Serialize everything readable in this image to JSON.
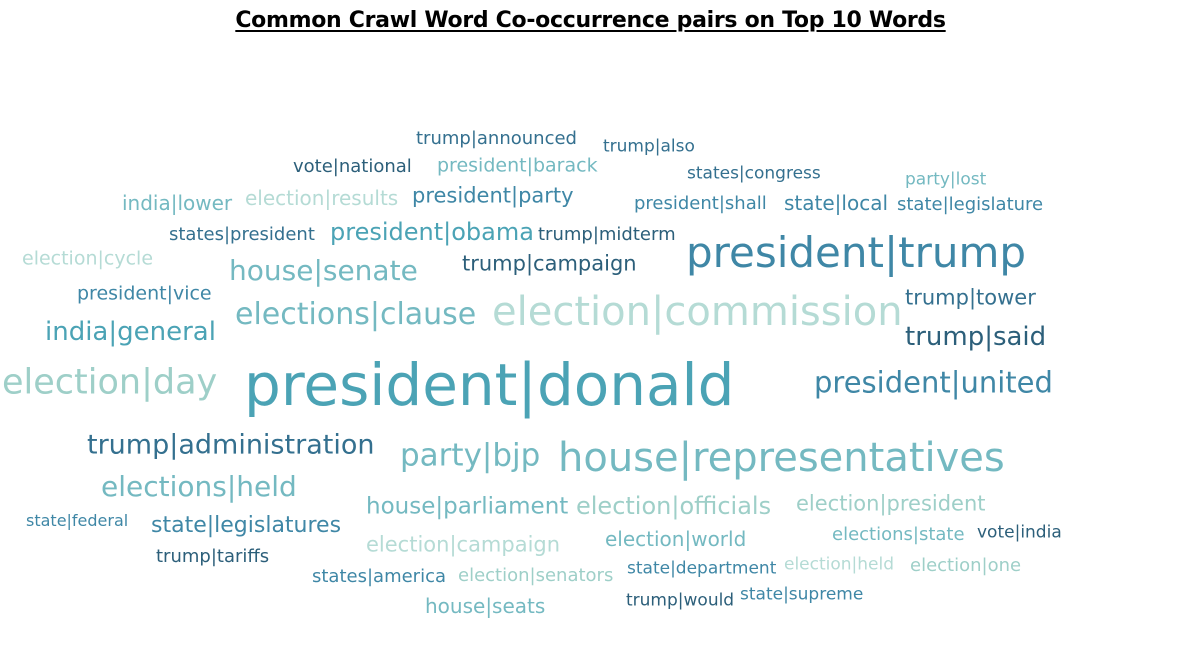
{
  "chart_data": {
    "type": "wordcloud",
    "title": "Common Crawl Word Co-occurrence pairs on Top 10 Words",
    "colors": {
      "darkest": "#2c5f7a",
      "dark": "#34708f",
      "mid": "#3f87a6",
      "teal": "#4ba3b5",
      "light": "#74b9c1",
      "pale": "#9ecfc8",
      "palest": "#b5dbd5"
    },
    "words": [
      {
        "text": "trump|announced",
        "color": "#34708f"
      },
      {
        "text": "trump|also",
        "color": "#34708f"
      },
      {
        "text": "vote|national",
        "color": "#2c5f7a"
      },
      {
        "text": "president|barack",
        "color": "#74b9c1"
      },
      {
        "text": "states|congress",
        "color": "#34708f"
      },
      {
        "text": "party|lost",
        "color": "#74b9c1"
      },
      {
        "text": "india|lower",
        "color": "#74b9c1"
      },
      {
        "text": "election|results",
        "color": "#b5dbd5"
      },
      {
        "text": "president|party",
        "color": "#3f87a6"
      },
      {
        "text": "president|shall",
        "color": "#3f87a6"
      },
      {
        "text": "state|local",
        "color": "#3f87a6"
      },
      {
        "text": "state|legislature",
        "color": "#3f87a6"
      },
      {
        "text": "states|president",
        "color": "#34708f"
      },
      {
        "text": "president|obama",
        "color": "#4ba3b5"
      },
      {
        "text": "trump|midterm",
        "color": "#2c5f7a"
      },
      {
        "text": "president|trump",
        "color": "#3f87a6"
      },
      {
        "text": "election|cycle",
        "color": "#b5dbd5"
      },
      {
        "text": "house|senate",
        "color": "#74b9c1"
      },
      {
        "text": "trump|campaign",
        "color": "#2c5f7a"
      },
      {
        "text": "president|vice",
        "color": "#3f87a6"
      },
      {
        "text": "trump|tower",
        "color": "#34708f"
      },
      {
        "text": "elections|clause",
        "color": "#74b9c1"
      },
      {
        "text": "election|commission",
        "color": "#b5dbd5"
      },
      {
        "text": "india|general",
        "color": "#4ba3b5"
      },
      {
        "text": "trump|said",
        "color": "#2c5f7a"
      },
      {
        "text": "election|day",
        "color": "#9ecfc8"
      },
      {
        "text": "president|donald",
        "color": "#4ba3b5"
      },
      {
        "text": "president|united",
        "color": "#3f87a6"
      },
      {
        "text": "trump|administration",
        "color": "#34708f"
      },
      {
        "text": "party|bjp",
        "color": "#74b9c1"
      },
      {
        "text": "house|representatives",
        "color": "#74b9c1"
      },
      {
        "text": "elections|held",
        "color": "#74b9c1"
      },
      {
        "text": "house|parliament",
        "color": "#74b9c1"
      },
      {
        "text": "election|officials",
        "color": "#9ecfc8"
      },
      {
        "text": "election|president",
        "color": "#9ecfc8"
      },
      {
        "text": "state|federal",
        "color": "#3f87a6"
      },
      {
        "text": "state|legislatures",
        "color": "#3f87a6"
      },
      {
        "text": "elections|state",
        "color": "#74b9c1"
      },
      {
        "text": "vote|india",
        "color": "#2c5f7a"
      },
      {
        "text": "election|campaign",
        "color": "#b5dbd5"
      },
      {
        "text": "election|world",
        "color": "#74b9c1"
      },
      {
        "text": "trump|tariffs",
        "color": "#2c5f7a"
      },
      {
        "text": "states|america",
        "color": "#3f87a6"
      },
      {
        "text": "election|senators",
        "color": "#9ecfc8"
      },
      {
        "text": "state|department",
        "color": "#3f87a6"
      },
      {
        "text": "election|held",
        "color": "#b5dbd5"
      },
      {
        "text": "election|one",
        "color": "#9ecfc8"
      },
      {
        "text": "house|seats",
        "color": "#74b9c1"
      },
      {
        "text": "trump|would",
        "color": "#2c5f7a"
      },
      {
        "text": "state|supreme",
        "color": "#3f87a6"
      }
    ]
  }
}
